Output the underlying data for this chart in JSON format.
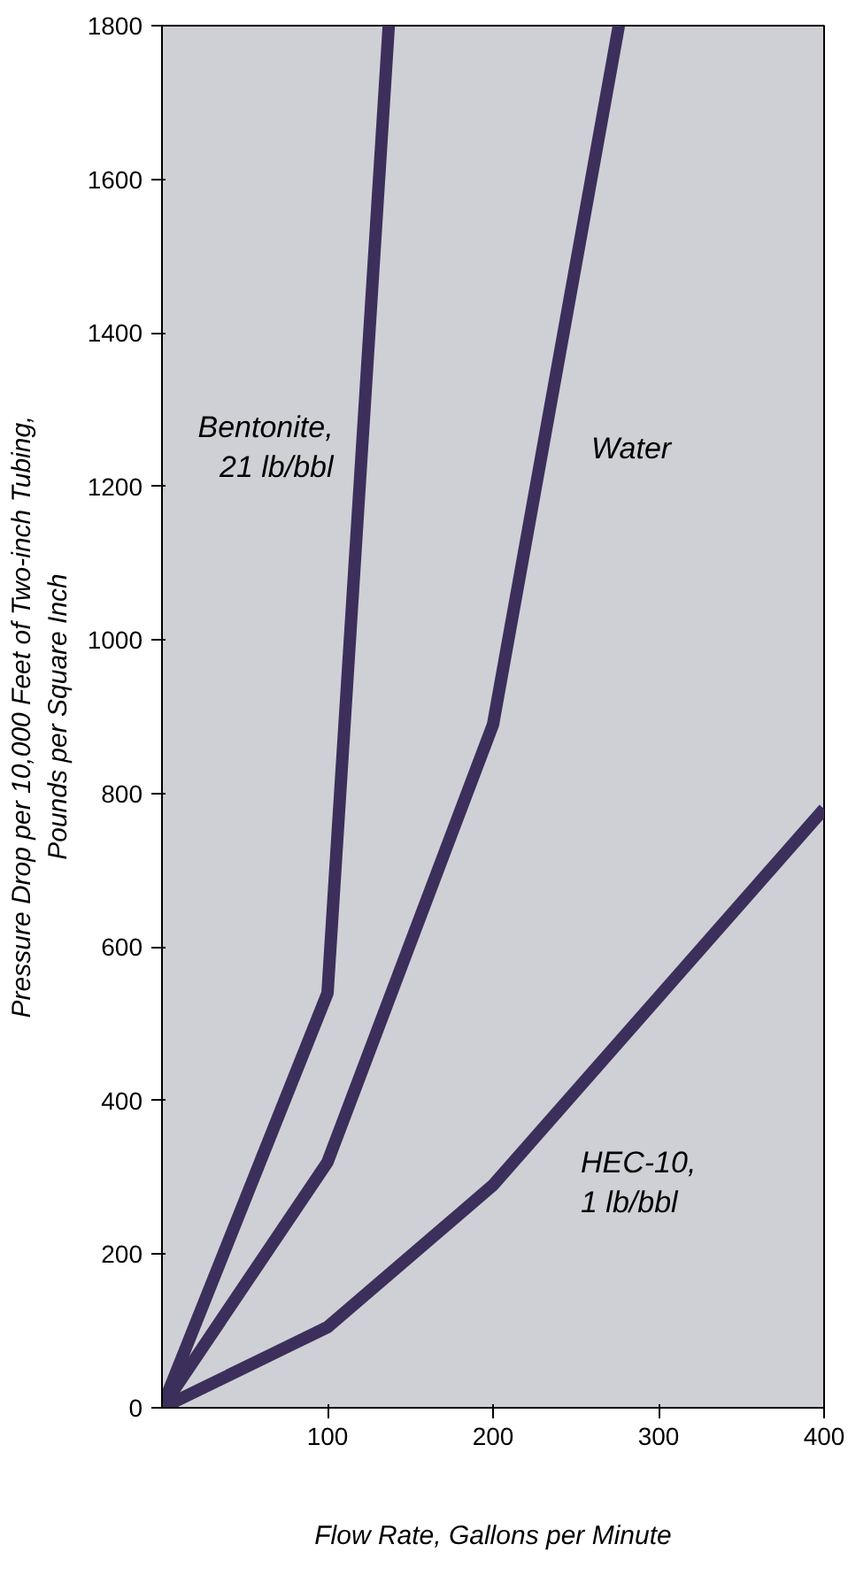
{
  "chart_data": {
    "type": "line",
    "xlabel": "Flow Rate, Gallons per Minute",
    "ylabel": "Pressure Drop per 10,000 Feet of Two-inch Tubing,\nPounds per Square Inch",
    "series": [
      {
        "name": "Bentonite,\n21 lb/bbl",
        "x": [
          0,
          100,
          137
        ],
        "values": [
          0,
          540,
          1800
        ],
        "color": "#3d2f5b"
      },
      {
        "name": "Water",
        "x": [
          0,
          100,
          200,
          276
        ],
        "values": [
          0,
          320,
          890,
          1800
        ],
        "color": "#3d2f5b"
      },
      {
        "name": "HEC-10,\n1 lb/bbl",
        "x": [
          0,
          100,
          200,
          400
        ],
        "values": [
          0,
          105,
          290,
          780
        ],
        "color": "#3d2f5b"
      }
    ],
    "xlim": [
      0,
      400
    ],
    "ylim": [
      0,
      1800
    ],
    "xticks": [
      100,
      200,
      300,
      400
    ],
    "yticks": [
      0,
      200,
      400,
      600,
      800,
      1000,
      1200,
      1400,
      1600,
      1800
    ],
    "grid": false,
    "line_style": "solid",
    "marker": "none"
  }
}
